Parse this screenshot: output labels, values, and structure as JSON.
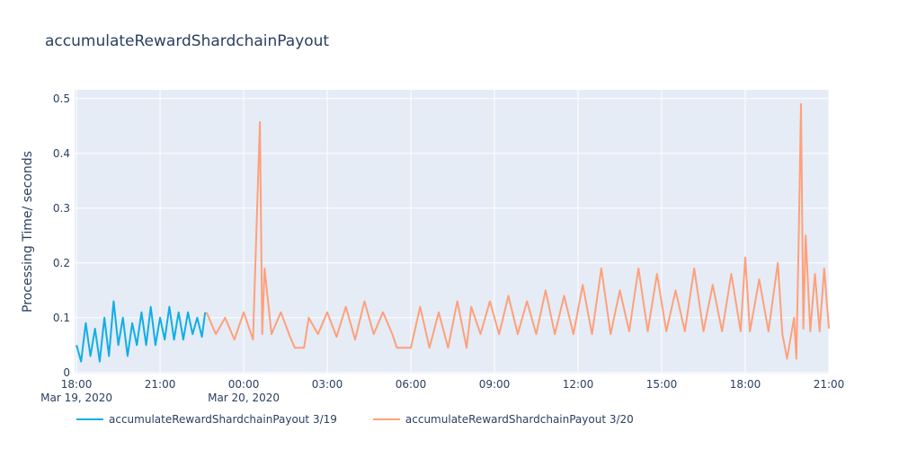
{
  "chart_data": {
    "type": "line",
    "title": "accumulateRewardShardchainPayout",
    "y_label": "Processing Time/ seconds",
    "xlim": [
      "2020-03-19 17:56",
      "2020-03-20 21:00"
    ],
    "ylim": [
      -0.002,
      0.516
    ],
    "yticks": [
      0,
      0.1,
      0.2,
      0.3,
      0.4,
      0.5
    ],
    "xticks": [
      {
        "value": "2020-03-19 18:00",
        "label": "18:00"
      },
      {
        "value": "2020-03-19 21:00",
        "label": "21:00"
      },
      {
        "value": "2020-03-20 00:00",
        "label": "00:00"
      },
      {
        "value": "2020-03-20 03:00",
        "label": "03:00"
      },
      {
        "value": "2020-03-20 06:00",
        "label": "06:00"
      },
      {
        "value": "2020-03-20 09:00",
        "label": "09:00"
      },
      {
        "value": "2020-03-20 12:00",
        "label": "12:00"
      },
      {
        "value": "2020-03-20 15:00",
        "label": "15:00"
      },
      {
        "value": "2020-03-20 18:00",
        "label": "18:00"
      },
      {
        "value": "2020-03-20 21:00",
        "label": "21:00"
      }
    ],
    "xtick_date_labels": [
      {
        "value": "2020-03-19 18:00",
        "label": "Mar 19, 2020"
      },
      {
        "value": "2020-03-20 00:00",
        "label": "Mar 20, 2020"
      }
    ],
    "grid": true,
    "legend": "bottom",
    "series": [
      {
        "name": "accumulateRewardShardchainPayout 3/19",
        "color": "#10aee6",
        "x": [
          "2020-03-19 18:00",
          "2020-03-19 18:10",
          "2020-03-19 18:20",
          "2020-03-19 18:30",
          "2020-03-19 18:40",
          "2020-03-19 18:50",
          "2020-03-19 19:00",
          "2020-03-19 19:10",
          "2020-03-19 19:20",
          "2020-03-19 19:30",
          "2020-03-19 19:40",
          "2020-03-19 19:50",
          "2020-03-19 20:00",
          "2020-03-19 20:10",
          "2020-03-19 20:20",
          "2020-03-19 20:30",
          "2020-03-19 20:40",
          "2020-03-19 20:50",
          "2020-03-19 21:00",
          "2020-03-19 21:10",
          "2020-03-19 21:20",
          "2020-03-19 21:30",
          "2020-03-19 21:40",
          "2020-03-19 21:50",
          "2020-03-19 22:00",
          "2020-03-19 22:10",
          "2020-03-19 22:20",
          "2020-03-19 22:30",
          "2020-03-19 22:37"
        ],
        "values": [
          0.05,
          0.02,
          0.09,
          0.03,
          0.08,
          0.02,
          0.1,
          0.03,
          0.13,
          0.05,
          0.1,
          0.03,
          0.09,
          0.05,
          0.11,
          0.05,
          0.12,
          0.05,
          0.1,
          0.06,
          0.12,
          0.06,
          0.11,
          0.06,
          0.11,
          0.07,
          0.1,
          0.065,
          0.11
        ]
      },
      {
        "name": "accumulateRewardShardchainPayout 3/20",
        "color": "#ffa07a",
        "x": [
          "2020-03-19 22:40",
          "2020-03-19 23:00",
          "2020-03-19 23:20",
          "2020-03-19 23:40",
          "2020-03-20 00:00",
          "2020-03-20 00:20",
          "2020-03-20 00:35",
          "2020-03-20 00:40",
          "2020-03-20 00:45",
          "2020-03-20 01:00",
          "2020-03-20 01:20",
          "2020-03-20 01:40",
          "2020-03-20 01:50",
          "2020-03-20 02:10",
          "2020-03-20 02:20",
          "2020-03-20 02:40",
          "2020-03-20 03:00",
          "2020-03-20 03:20",
          "2020-03-20 03:40",
          "2020-03-20 04:00",
          "2020-03-20 04:20",
          "2020-03-20 04:40",
          "2020-03-20 05:00",
          "2020-03-20 05:20",
          "2020-03-20 05:30",
          "2020-03-20 06:00",
          "2020-03-20 06:20",
          "2020-03-20 06:40",
          "2020-03-20 07:00",
          "2020-03-20 07:20",
          "2020-03-20 07:40",
          "2020-03-20 08:00",
          "2020-03-20 08:10",
          "2020-03-20 08:30",
          "2020-03-20 08:50",
          "2020-03-20 09:10",
          "2020-03-20 09:30",
          "2020-03-20 09:50",
          "2020-03-20 10:10",
          "2020-03-20 10:30",
          "2020-03-20 10:50",
          "2020-03-20 11:10",
          "2020-03-20 11:30",
          "2020-03-20 11:50",
          "2020-03-20 12:10",
          "2020-03-20 12:30",
          "2020-03-20 12:50",
          "2020-03-20 13:10",
          "2020-03-20 13:30",
          "2020-03-20 13:50",
          "2020-03-20 14:10",
          "2020-03-20 14:30",
          "2020-03-20 14:50",
          "2020-03-20 15:10",
          "2020-03-20 15:30",
          "2020-03-20 15:50",
          "2020-03-20 16:10",
          "2020-03-20 16:30",
          "2020-03-20 16:50",
          "2020-03-20 17:10",
          "2020-03-20 17:30",
          "2020-03-20 17:50",
          "2020-03-20 18:00",
          "2020-03-20 18:10",
          "2020-03-20 18:30",
          "2020-03-20 18:50",
          "2020-03-20 19:10",
          "2020-03-20 19:20",
          "2020-03-20 19:30",
          "2020-03-20 19:45",
          "2020-03-20 19:50",
          "2020-03-20 19:55",
          "2020-03-20 20:00",
          "2020-03-20 20:05",
          "2020-03-20 20:10",
          "2020-03-20 20:20",
          "2020-03-20 20:30",
          "2020-03-20 20:40",
          "2020-03-20 20:50",
          "2020-03-20 21:00"
        ],
        "values": [
          0.11,
          0.07,
          0.1,
          0.06,
          0.11,
          0.06,
          0.457,
          0.07,
          0.19,
          0.07,
          0.11,
          0.065,
          0.045,
          0.045,
          0.1,
          0.07,
          0.11,
          0.065,
          0.12,
          0.06,
          0.13,
          0.07,
          0.11,
          0.07,
          0.045,
          0.045,
          0.12,
          0.045,
          0.11,
          0.045,
          0.13,
          0.045,
          0.12,
          0.07,
          0.13,
          0.07,
          0.14,
          0.07,
          0.13,
          0.07,
          0.15,
          0.07,
          0.14,
          0.07,
          0.16,
          0.07,
          0.19,
          0.07,
          0.15,
          0.075,
          0.19,
          0.075,
          0.18,
          0.075,
          0.15,
          0.075,
          0.19,
          0.075,
          0.16,
          0.075,
          0.18,
          0.075,
          0.21,
          0.075,
          0.17,
          0.075,
          0.2,
          0.07,
          0.025,
          0.1,
          0.025,
          0.24,
          0.49,
          0.08,
          0.25,
          0.075,
          0.18,
          0.075,
          0.19,
          0.08
        ]
      }
    ]
  }
}
